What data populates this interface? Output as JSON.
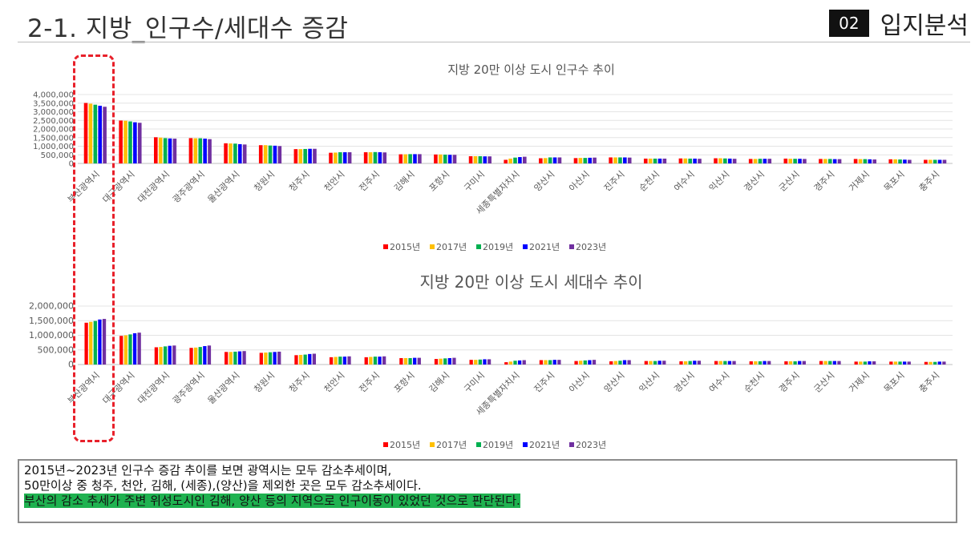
{
  "header": {
    "title": "2-1. 지방_인구수/세대수 증감",
    "section_number": "02",
    "section_name": "입지분석"
  },
  "colors": {
    "2015년": "#ff0000",
    "2017년": "#ffc000",
    "2019년": "#00b050",
    "2021년": "#0000ff",
    "2023년": "#7030a0",
    "highlight_border": "#e8202a",
    "summary_highlight": "#1fb250"
  },
  "chart_data": [
    {
      "type": "bar",
      "title": "지방 20만 이상 도시 인구수 추이",
      "categories": [
        "부산광역시",
        "대구광역시",
        "대전광역시",
        "광주광역시",
        "울산광역시",
        "창원시",
        "청주시",
        "천안시",
        "전주시",
        "김해시",
        "포항시",
        "구미시",
        "세종특별자치시",
        "양산시",
        "아산시",
        "진주시",
        "순천시",
        "여수시",
        "익산시",
        "경산시",
        "군산시",
        "경주시",
        "거제시",
        "목포시",
        "충주시"
      ],
      "series": [
        {
          "name": "2015년",
          "values": [
            3510000,
            2490000,
            1520000,
            1470000,
            1170000,
            1060000,
            830000,
            620000,
            650000,
            530000,
            520000,
            420000,
            210000,
            300000,
            310000,
            350000,
            280000,
            290000,
            300000,
            260000,
            280000,
            260000,
            260000,
            240000,
            210000
          ]
        },
        {
          "name": "2017년",
          "values": [
            3470000,
            2480000,
            1500000,
            1460000,
            1160000,
            1060000,
            830000,
            630000,
            650000,
            530000,
            520000,
            420000,
            280000,
            310000,
            320000,
            350000,
            280000,
            290000,
            300000,
            260000,
            270000,
            260000,
            250000,
            240000,
            210000
          ]
        },
        {
          "name": "2019년",
          "values": [
            3410000,
            2440000,
            1470000,
            1460000,
            1150000,
            1040000,
            840000,
            650000,
            660000,
            540000,
            510000,
            420000,
            340000,
            350000,
            320000,
            350000,
            280000,
            280000,
            290000,
            270000,
            270000,
            260000,
            250000,
            230000,
            210000
          ]
        },
        {
          "name": "2021년",
          "values": [
            3350000,
            2390000,
            1450000,
            1440000,
            1120000,
            1030000,
            850000,
            650000,
            650000,
            540000,
            500000,
            410000,
            370000,
            350000,
            330000,
            350000,
            280000,
            280000,
            280000,
            270000,
            270000,
            250000,
            240000,
            220000,
            210000
          ]
        },
        {
          "name": "2023년",
          "values": [
            3290000,
            2360000,
            1440000,
            1410000,
            1100000,
            1010000,
            850000,
            650000,
            640000,
            540000,
            500000,
            410000,
            390000,
            350000,
            340000,
            340000,
            280000,
            270000,
            270000,
            270000,
            260000,
            250000,
            230000,
            210000,
            210000
          ]
        }
      ],
      "y_ticks": [
        "4,000,000",
        "3,500,000",
        "3,000,000",
        "2,500,000",
        "2,000,000",
        "1,500,000",
        "1,000,000",
        "500,000",
        "0"
      ],
      "ylim": [
        0,
        4000000
      ],
      "legend": [
        "2015년",
        "2017년",
        "2019년",
        "2021년",
        "2023년"
      ],
      "legend_position": "bottom",
      "grid": true
    },
    {
      "type": "bar",
      "title": "지방 20만 이상 도시 세대수 추이",
      "categories": [
        "부산광역시",
        "대구광역시",
        "대전광역시",
        "광주광역시",
        "울산광역시",
        "창원시",
        "청주시",
        "천안시",
        "전주시",
        "포항시",
        "김해시",
        "구미시",
        "세종특별자치시",
        "진주시",
        "아산시",
        "양산시",
        "익산시",
        "경산시",
        "여수시",
        "순천시",
        "경주시",
        "군산시",
        "거제시",
        "목포시",
        "충주시"
      ],
      "series": [
        {
          "name": "2015년",
          "values": [
            1430000,
            980000,
            590000,
            570000,
            430000,
            400000,
            320000,
            250000,
            250000,
            220000,
            190000,
            160000,
            80000,
            150000,
            120000,
            110000,
            120000,
            110000,
            120000,
            110000,
            110000,
            120000,
            100000,
            100000,
            90000
          ]
        },
        {
          "name": "2017년",
          "values": [
            1460000,
            1000000,
            600000,
            580000,
            430000,
            410000,
            330000,
            260000,
            260000,
            220000,
            200000,
            160000,
            100000,
            150000,
            130000,
            120000,
            120000,
            110000,
            120000,
            110000,
            110000,
            120000,
            100000,
            100000,
            90000
          ]
        },
        {
          "name": "2019년",
          "values": [
            1490000,
            1030000,
            620000,
            600000,
            440000,
            420000,
            340000,
            270000,
            270000,
            220000,
            210000,
            170000,
            130000,
            150000,
            140000,
            130000,
            120000,
            120000,
            120000,
            110000,
            110000,
            120000,
            100000,
            100000,
            90000
          ]
        },
        {
          "name": "2021년",
          "values": [
            1540000,
            1070000,
            640000,
            630000,
            450000,
            430000,
            360000,
            270000,
            270000,
            230000,
            220000,
            180000,
            140000,
            160000,
            150000,
            150000,
            130000,
            130000,
            120000,
            120000,
            120000,
            120000,
            110000,
            100000,
            100000
          ]
        },
        {
          "name": "2023년",
          "values": [
            1560000,
            1090000,
            650000,
            650000,
            460000,
            440000,
            370000,
            280000,
            280000,
            230000,
            230000,
            180000,
            150000,
            160000,
            160000,
            150000,
            130000,
            130000,
            120000,
            120000,
            120000,
            120000,
            110000,
            100000,
            100000
          ]
        }
      ],
      "y_ticks": [
        "2,000,000",
        "1,500,000",
        "1,000,000",
        "500,000",
        "0"
      ],
      "ylim": [
        0,
        2000000
      ],
      "legend": [
        "2015년",
        "2017년",
        "2019년",
        "2021년",
        "2023년"
      ],
      "legend_position": "bottom",
      "grid": true
    }
  ],
  "summary": {
    "line1": "2015년~2023년 인구수 증감 추이를 보면 광역시는 모두 감소추세이며,",
    "line2": "50만이상 중 청주, 천안, 김해, (세종),(양산)을 제외한 곳은 모두 감소추세이다.",
    "line3": "부산의 감소 추세가 주변 위성도시인 김해, 양산 등의 지역으로 인구이동이 있었던 것으로 판단된다."
  }
}
